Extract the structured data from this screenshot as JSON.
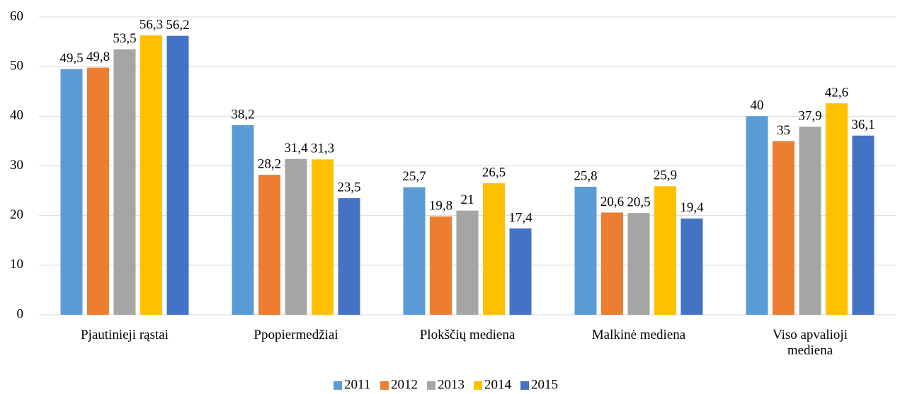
{
  "chart_data": {
    "type": "bar",
    "categories": [
      "Pjautinieji rąstai",
      "Ppopiermedžiai",
      "Plokščių mediena",
      "Malkinė mediena",
      "Viso apvalioji mediena"
    ],
    "series": [
      {
        "name": "2011",
        "color": "#5b9bd5",
        "values": [
          49.5,
          38.2,
          25.7,
          25.8,
          40
        ],
        "value_labels": [
          "49,5",
          "38,2",
          "25,7",
          "25,8",
          "40"
        ]
      },
      {
        "name": "2012",
        "color": "#ed7d31",
        "values": [
          49.8,
          28.2,
          19.8,
          20.6,
          35
        ],
        "value_labels": [
          "49,8",
          "28,2",
          "19,8",
          "20,6",
          "35"
        ]
      },
      {
        "name": "2013",
        "color": "#a5a5a5",
        "values": [
          53.5,
          31.4,
          21,
          20.5,
          37.9
        ],
        "value_labels": [
          "53,5",
          "31,4",
          "21",
          "20,5",
          "37,9"
        ]
      },
      {
        "name": "2014",
        "color": "#ffc000",
        "values": [
          56.3,
          31.3,
          26.5,
          25.9,
          42.6
        ],
        "value_labels": [
          "56,3",
          "31,3",
          "26,5",
          "25,9",
          "42,6"
        ]
      },
      {
        "name": "2015",
        "color": "#4472c4",
        "values": [
          56.2,
          23.5,
          17.4,
          19.4,
          36.1
        ],
        "value_labels": [
          "56,2",
          "23,5",
          "17,4",
          "19,4",
          "36,1"
        ]
      }
    ],
    "ylim": [
      0,
      60
    ],
    "yticks": [
      0,
      10,
      20,
      30,
      40,
      50,
      60
    ],
    "grid": true,
    "legend": "bottom"
  }
}
